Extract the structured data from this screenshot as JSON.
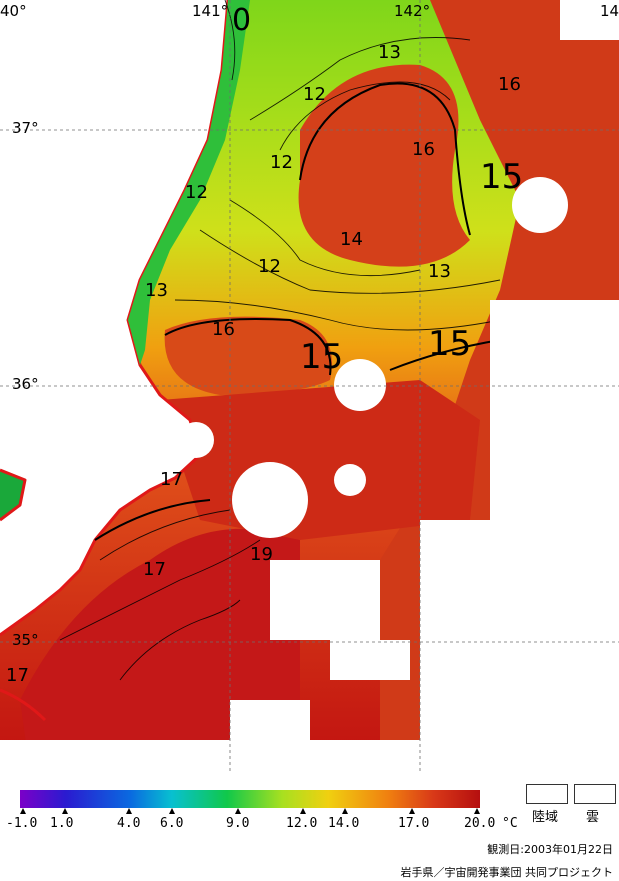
{
  "map": {
    "longitude_labels": [
      "40°",
      "141°",
      "142°",
      "14"
    ],
    "latitude_labels": [
      "37°",
      "36°",
      "35°"
    ],
    "isotherm_labels": [
      "12",
      "13",
      "12",
      "16",
      "12",
      "12",
      "14",
      "12",
      "13",
      "13",
      "16",
      "17",
      "17",
      "19",
      "17",
      "16",
      "0"
    ],
    "large_labels": [
      "15",
      "15",
      "15"
    ]
  },
  "colorbar": {
    "ticks": [
      "-1.0",
      "1.0",
      "4.0",
      "6.0",
      "9.0",
      "12.0",
      "14.0",
      "17.0",
      "20.0"
    ],
    "unit": "°C"
  },
  "legend": {
    "land_label": "陸域",
    "cloud_label": "雲"
  },
  "footer": {
    "observation_date": "観測日:2003年01月22日",
    "credit": "岩手県／宇宙開発事業団 共同プロジェクト"
  },
  "colors": {
    "coastline": "#e01818",
    "cold": "#7b00c8",
    "warm": "#b50f0f"
  }
}
